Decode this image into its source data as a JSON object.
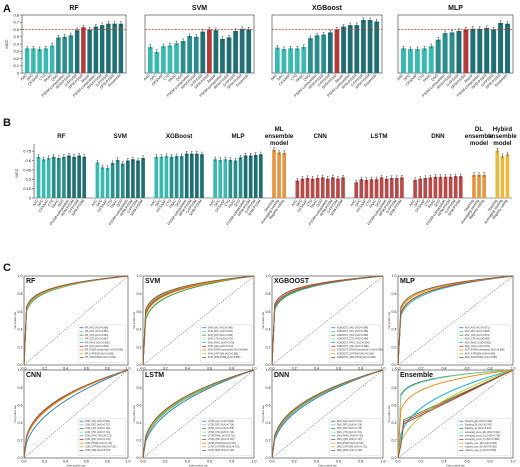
{
  "figure": {
    "panel_letters": [
      "A",
      "B",
      "C"
    ]
  },
  "colors": {
    "teal_dark": "#1f6f73",
    "teal_mid": "#2b8e8c",
    "teal_light": "#3ab9b0",
    "red_bar": "#b23a3a",
    "dl_red": "#b84a4a",
    "orange": "#e6953f",
    "gold": "#e8b840",
    "threshold": "#c0392b"
  },
  "chart_data": [
    {
      "panel": "A",
      "type": "bar",
      "title": "RF",
      "ylabel": "MCC",
      "ylim": [
        0,
        0.8
      ],
      "yticks": [
        0,
        0.1,
        0.2,
        0.3,
        0.4,
        0.5,
        0.6,
        0.7,
        0.8
      ],
      "threshold": 0.6,
      "categories": [
        "AAC",
        "DPC",
        "CKSAAP",
        "CTD",
        "PAAC",
        "QSO",
        "PSSM-composition",
        "RPM-PSSM",
        "S-FPSSM",
        "SPM-PSSM",
        "Jaspar",
        "PSSM-composition",
        "RPM-PSSM",
        "S-FPSSM",
        "SPM-PSSM",
        "Ensemble"
      ],
      "values": [
        0.34,
        0.34,
        0.33,
        0.34,
        0.38,
        0.49,
        0.5,
        0.52,
        0.59,
        0.63,
        0.6,
        0.64,
        0.66,
        0.68,
        0.68,
        0.68
      ],
      "errors": [
        0.03,
        0.03,
        0.03,
        0.03,
        0.03,
        0.03,
        0.03,
        0.03,
        0.03,
        0.03,
        0.03,
        0.03,
        0.03,
        0.03,
        0.03,
        0.03
      ],
      "bar_colors": [
        "#3ab9b0",
        "#3ab9b0",
        "#3ab9b0",
        "#3ab9b0",
        "#3ab9b0",
        "#2b8e8c",
        "#2b8e8c",
        "#2b8e8c",
        "#1f6f73",
        "#b23a3a",
        "#1f6f73",
        "#1f6f73",
        "#1f6f73",
        "#1f6f73",
        "#1f6f73",
        "#1f6f73"
      ]
    },
    {
      "panel": "A",
      "type": "bar",
      "title": "SVM",
      "ylim": [
        0,
        0.8
      ],
      "threshold": 0.6,
      "categories": [
        "AAC",
        "DPC",
        "CKSAAP",
        "CTD",
        "PAAC",
        "QSO",
        "PSSM-composition",
        "RPM-PSSM",
        "S-FPSSM",
        "SPM-PSSM",
        "Jaspar",
        "PSSM-composition",
        "RPM-PSSM",
        "S-FPSSM",
        "SPM-PSSM",
        "Ensemble"
      ],
      "values": [
        0.36,
        0.29,
        0.37,
        0.38,
        0.41,
        0.44,
        0.51,
        0.5,
        0.57,
        0.6,
        0.59,
        0.47,
        0.49,
        0.58,
        0.61,
        0.6
      ],
      "errors": [
        0.03,
        0.03,
        0.03,
        0.03,
        0.03,
        0.03,
        0.03,
        0.03,
        0.03,
        0.03,
        0.03,
        0.03,
        0.03,
        0.03,
        0.03,
        0.03
      ],
      "bar_colors": [
        "#3ab9b0",
        "#3ab9b0",
        "#3ab9b0",
        "#3ab9b0",
        "#3ab9b0",
        "#2b8e8c",
        "#2b8e8c",
        "#2b8e8c",
        "#1f6f73",
        "#b23a3a",
        "#1f6f73",
        "#1f6f73",
        "#1f6f73",
        "#1f6f73",
        "#1f6f73",
        "#1f6f73"
      ]
    },
    {
      "panel": "A",
      "type": "bar",
      "title": "XGBoost",
      "ylim": [
        0,
        0.8
      ],
      "threshold": 0.6,
      "categories": [
        "AAC",
        "DPC",
        "CKSAAP",
        "CTD",
        "PAAC",
        "QSO",
        "PSSM-composition",
        "RPM-PSSM",
        "S-FPSSM",
        "SPM-PSSM",
        "Jaspar",
        "PSSM-composition",
        "RPM-PSSM",
        "S-FPSSM",
        "SPM-PSSM",
        "Ensemble"
      ],
      "values": [
        0.35,
        0.33,
        0.34,
        0.34,
        0.36,
        0.48,
        0.52,
        0.53,
        0.56,
        0.6,
        0.64,
        0.66,
        0.66,
        0.73,
        0.73,
        0.71
      ],
      "errors": [
        0.03,
        0.03,
        0.03,
        0.03,
        0.03,
        0.03,
        0.03,
        0.03,
        0.03,
        0.03,
        0.03,
        0.03,
        0.03,
        0.03,
        0.03,
        0.03
      ],
      "bar_colors": [
        "#3ab9b0",
        "#3ab9b0",
        "#3ab9b0",
        "#3ab9b0",
        "#3ab9b0",
        "#2b8e8c",
        "#2b8e8c",
        "#2b8e8c",
        "#1f6f73",
        "#b23a3a",
        "#1f6f73",
        "#1f6f73",
        "#1f6f73",
        "#1f6f73",
        "#1f6f73",
        "#1f6f73"
      ]
    },
    {
      "panel": "A",
      "type": "bar",
      "title": "MLP",
      "ylim": [
        0,
        0.8
      ],
      "threshold": 0.6,
      "categories": [
        "AAC",
        "DPC",
        "CKSAAP",
        "CTD",
        "PAAC",
        "QSO",
        "PSSM-composition",
        "RPM-PSSM",
        "S-FPSSM",
        "SPM-PSSM",
        "Jaspar",
        "PSSM-composition",
        "RPM-PSSM",
        "S-FPSSM",
        "SPM-PSSM",
        "Ensemble"
      ],
      "values": [
        0.34,
        0.33,
        0.33,
        0.34,
        0.37,
        0.46,
        0.55,
        0.56,
        0.58,
        0.6,
        0.61,
        0.61,
        0.62,
        0.6,
        0.69,
        0.68
      ],
      "errors": [
        0.03,
        0.03,
        0.03,
        0.03,
        0.03,
        0.03,
        0.03,
        0.03,
        0.03,
        0.03,
        0.03,
        0.03,
        0.03,
        0.03,
        0.03,
        0.03
      ],
      "bar_colors": [
        "#3ab9b0",
        "#3ab9b0",
        "#3ab9b0",
        "#3ab9b0",
        "#3ab9b0",
        "#2b8e8c",
        "#2b8e8c",
        "#2b8e8c",
        "#1f6f73",
        "#b23a3a",
        "#1f6f73",
        "#1f6f73",
        "#1f6f73",
        "#1f6f73",
        "#1f6f73",
        "#1f6f73"
      ]
    },
    {
      "panel": "B",
      "type": "bar",
      "ylabel": "MCC",
      "ylim": [
        0,
        0.8
      ],
      "yticks": [
        0,
        0.15,
        0.3,
        0.45,
        0.6,
        0.75
      ],
      "groups": [
        {
          "title": "RF",
          "kind": "ml",
          "categories": [
            "AAC",
            "DPC",
            "CKSAAP",
            "CTD",
            "PAAC",
            "QSO",
            "PSSM-composition",
            "RPM-PSSM",
            "S-FPSSM",
            "SPM-PSSM"
          ],
          "values": [
            0.66,
            0.62,
            0.64,
            0.66,
            0.64,
            0.66,
            0.68,
            0.66,
            0.68,
            0.66
          ]
        },
        {
          "title": "SVM",
          "kind": "ml",
          "categories": [
            "AAC",
            "DPC",
            "CKSAAP",
            "CTD",
            "PAAC",
            "QSO",
            "PSSM-composition",
            "RPM-PSSM",
            "S-FPSSM",
            "SPM-PSSM"
          ],
          "values": [
            0.57,
            0.49,
            0.48,
            0.56,
            0.61,
            0.55,
            0.6,
            0.62,
            0.6,
            0.64
          ]
        },
        {
          "title": "XGBoost",
          "kind": "ml",
          "categories": [
            "AAC",
            "DPC",
            "CKSAAP",
            "CTD",
            "PAAC",
            "QSO",
            "PSSM-composition",
            "RPM-PSSM",
            "S-FPSSM",
            "SPM-PSSM"
          ],
          "values": [
            0.66,
            0.66,
            0.67,
            0.66,
            0.67,
            0.67,
            0.71,
            0.71,
            0.71,
            0.7
          ]
        },
        {
          "title": "MLP",
          "kind": "ml",
          "categories": [
            "AAC",
            "DPC",
            "CKSAAP",
            "CTD",
            "PAAC",
            "QSO",
            "PSSM-composition",
            "RPM-PSSM",
            "S-FPSSM",
            "SPM-PSSM"
          ],
          "values": [
            0.62,
            0.61,
            0.62,
            0.61,
            0.6,
            0.65,
            0.68,
            0.68,
            0.69,
            0.7
          ]
        },
        {
          "title": "ML ensemble model",
          "kind": "ml_ens",
          "categories": [
            "Stacking",
            "Averaging scoring",
            "Majority voting"
          ],
          "values": [
            0.77,
            0.73,
            0.72
          ]
        },
        {
          "title": "CNN",
          "kind": "dl",
          "categories": [
            "AAC",
            "DPC",
            "CKSAAP",
            "CTD",
            "PAAC",
            "QSO",
            "PSSM-composition",
            "RPM-PSSM",
            "S-FPSSM",
            "SPM-PSSM"
          ],
          "values": [
            0.28,
            0.31,
            0.32,
            0.31,
            0.32,
            0.33,
            0.31,
            0.33,
            0.31,
            0.33
          ]
        },
        {
          "title": "LSTM",
          "kind": "dl",
          "categories": [
            "AAC",
            "DPC",
            "CKSAAP",
            "CTD",
            "PAAC",
            "QSO",
            "PSSM-composition",
            "RPM-PSSM",
            "S-FPSSM",
            "SPM-PSSM"
          ],
          "values": [
            0.25,
            0.3,
            0.29,
            0.3,
            0.3,
            0.33,
            0.31,
            0.32,
            0.32,
            0.33
          ]
        },
        {
          "title": "DNN",
          "kind": "dl",
          "categories": [
            "AAC",
            "DPC",
            "CKSAAP",
            "CTD",
            "PAAC",
            "QSO",
            "PSSM-composition",
            "RPM-PSSM",
            "S-FPSSM",
            "SPM-PSSM"
          ],
          "values": [
            0.29,
            0.31,
            0.32,
            0.33,
            0.34,
            0.34,
            0.34,
            0.34,
            0.35,
            0.35
          ]
        },
        {
          "title": "DL ensemble model",
          "kind": "dl_ens",
          "categories": [
            "Stacking",
            "Averaging scoring",
            "Majority voting"
          ],
          "values": [
            0.37,
            0.37,
            0.37
          ]
        },
        {
          "title": "Hybird ensemble model",
          "kind": "hy_ens",
          "categories": [
            "Stacking",
            "Averaging scoring",
            "Majority voting"
          ],
          "values": [
            0.76,
            0.67,
            0.7
          ]
        }
      ]
    },
    {
      "panel": "C",
      "type": "line",
      "subtype": "roc",
      "xlabel": "False positive rate",
      "ylabel": "True positive rate",
      "xlim": [
        0,
        1
      ],
      "ylim": [
        0,
        1
      ],
      "ticks": [
        "0.0",
        "0.2",
        "0.4",
        "0.6",
        "0.8",
        "1.0"
      ],
      "subplots": [
        {
          "title": "RF",
          "kind": "ml",
          "legend": [
            "RF_AAC (AUC=0.886)",
            "RF_DPC (AUC=0.880)",
            "RF_CKS (AUC=0.884)",
            "RF_CTD (AUC=0.887)",
            "RF_PAAC (AUC=0.890)",
            "RF_QSO (AUC=0.898)",
            "RF_PSSM-composition (AUC=0.888)",
            "RF_S-FPSSM (AUC=0.888)",
            "RF_SPM-PSSM (AUC=0.896)"
          ],
          "auc": [
            0.886,
            0.88,
            0.884,
            0.887,
            0.89,
            0.898,
            0.888,
            0.888,
            0.896
          ]
        },
        {
          "title": "SVM",
          "kind": "ml",
          "legend": [
            "SVM_AAC (AUC=0.886)",
            "SVM_DPC (AUC=0.851)",
            "SVM_CKS (AUC=0.849)",
            "SVM_CTD (AUC=0.872)",
            "SVM_PAAC (AUC=0.878)",
            "SVM_QSO (AUC=0.872)",
            "SVM_PSSM-composition (AUC=0.866)",
            "SVM_S-FPSSM (AUC=0.882)",
            "SVM_SPM-PSSM (AUC=0.888)"
          ],
          "auc": [
            0.886,
            0.851,
            0.849,
            0.872,
            0.878,
            0.872,
            0.866,
            0.882,
            0.888
          ]
        },
        {
          "title": "XGBOOST",
          "kind": "ml",
          "legend": [
            "XGBOOST_AAC (AUC=0.888)",
            "XGBOOST_DPC (AUC=0.889)",
            "XGBOOST_CKS (AUC=0.888)",
            "XGBOOST_CTD (AUC=0.894)",
            "XGBOOST_PAAC (AUC=0.894)",
            "XGBOOST_QSO (AUC=0.898)",
            "XGBOOST_PSSM-composition (AUC=0.906)",
            "XGBOOST_S-FPSSM (AUC=0.908)",
            "XGBOOST_SPM-PSSM (AUC=0.908)"
          ],
          "auc": [
            0.888,
            0.889,
            0.888,
            0.894,
            0.894,
            0.898,
            0.906,
            0.908,
            0.908
          ]
        },
        {
          "title": "MLP",
          "kind": "ml",
          "legend": [
            "MLP_AAC (AUC=0.871)",
            "MLP_DPC (AUC=0.868)",
            "MLP_CKS (AUC=0.872)",
            "MLP_CTD (AUC=0.869)",
            "MLP_PAAC (AUC=0.862)",
            "MLP_QSO (AUC=0.873)",
            "MLP_PSSM-composition (AUC=0.886)",
            "MLP_S-FPSSM (AUC=0.889)",
            "MLP_SPM-PSSM (AUC=0.896)"
          ],
          "auc": [
            0.871,
            0.868,
            0.872,
            0.869,
            0.862,
            0.873,
            0.886,
            0.889,
            0.896
          ]
        },
        {
          "title": "CNN",
          "kind": "dl",
          "legend": [
            "CNN_AAC (AUC=0.681)",
            "CNN_DPC (AUC=0.717)",
            "CNN_CKS (AUC=0.723)",
            "CNN_CTD (AUC=0.714)",
            "CNN_PAAC (AUC=0.721)",
            "CNN_QSO (AUC=0.724)",
            "CNN_PSSM (AUC=0.716)",
            "CNN_S-FPSSM (AUC=0.728)",
            "CNN_SPM (AUC=0.730)"
          ],
          "auc": [
            0.681,
            0.717,
            0.723,
            0.714,
            0.721,
            0.724,
            0.716,
            0.728,
            0.73
          ]
        },
        {
          "title": "LSTM",
          "kind": "dl",
          "legend": [
            "LSTM_AAC (AUC=0.692)",
            "LSTM_DPC (AUC=0.714)",
            "LSTM_CKS (AUC=0.708)",
            "LSTM_CTD (AUC=0.712)",
            "LSTM_PAAC (AUC=0.716)",
            "LSTM_QSO (AUC=0.726)",
            "LSTM_PSSM (AUC=0.720)",
            "LSTM_S-FPSSM (AUC=0.722)",
            "LSTM_SPM (AUC=0.728)"
          ],
          "auc": [
            0.692,
            0.714,
            0.708,
            0.712,
            0.716,
            0.726,
            0.72,
            0.722,
            0.728
          ]
        },
        {
          "title": "DNN",
          "kind": "dl",
          "legend": [
            "DNN_AAC (AUC=0.704)",
            "DNN_DPC (AUC=0.716)",
            "DNN_CKS (AUC=0.718)",
            "DNN_CTD (AUC=0.722)",
            "DNN_PAAC (AUC=0.725)",
            "DNN_QSO (AUC=0.727)",
            "DNN_PSSM (AUC=0.728)",
            "DNN_S-FPSSM (AUC=0.731)",
            "DNN_SPM (AUC=0.733)"
          ],
          "auc": [
            0.704,
            0.716,
            0.718,
            0.722,
            0.725,
            0.727,
            0.728,
            0.731,
            0.733
          ]
        },
        {
          "title": "Ensemble",
          "kind": "ens",
          "legend": [
            "Stacking_ML (AUC=0.918)",
            "Stacking_DL (AUC=0.740)",
            "Stacking_hy (AUC=0.904)",
            "averaging_score_ML (AUC=0.912)",
            "averaging_score_DL (AUC=0.738)",
            "averaging_score_hy (AUC=0.880)",
            "majority_vote_ML (AUC=0.860)",
            "majority_vote_DL (AUC=0.682)",
            "majority_vote_hy (AUC=0.856)"
          ],
          "auc": [
            0.918,
            0.74,
            0.904,
            0.912,
            0.738,
            0.88,
            0.86,
            0.682,
            0.856
          ]
        }
      ],
      "line_colors": [
        "#1f77b4",
        "#7fb3d5",
        "#2ca02c",
        "#98df8a",
        "#17becf",
        "#d62728",
        "#ff7f0e",
        "#bcbd22",
        "#8c564b"
      ]
    }
  ]
}
